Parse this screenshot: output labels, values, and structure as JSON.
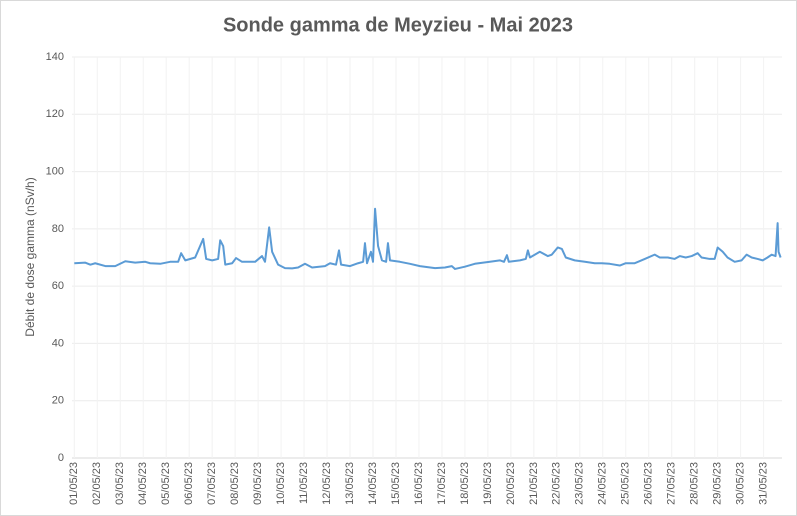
{
  "chart_data": {
    "type": "line",
    "title": "Sonde gamma de Meyzieu - Mai 2023",
    "y_label": "Débit de dose gamma (nSv/h)",
    "grid": true,
    "xlim": [
      0.9,
      31.8
    ],
    "xticks": [
      {
        "value": 1,
        "label": "01/05/23"
      },
      {
        "value": 2,
        "label": "02/05/23"
      },
      {
        "value": 3,
        "label": "03/05/23"
      },
      {
        "value": 4,
        "label": "04/05/23"
      },
      {
        "value": 5,
        "label": "05/05/23"
      },
      {
        "value": 6,
        "label": "06/05/23"
      },
      {
        "value": 7,
        "label": "07/05/23"
      },
      {
        "value": 8,
        "label": "08/05/23"
      },
      {
        "value": 9,
        "label": "09/05/23"
      },
      {
        "value": 10,
        "label": "10/05/23"
      },
      {
        "value": 11,
        "label": "11/05/23"
      },
      {
        "value": 12,
        "label": "12/05/23"
      },
      {
        "value": 13,
        "label": "13/05/23"
      },
      {
        "value": 14,
        "label": "14/05/23"
      },
      {
        "value": 15,
        "label": "15/05/23"
      },
      {
        "value": 16,
        "label": "16/05/23"
      },
      {
        "value": 17,
        "label": "17/05/23"
      },
      {
        "value": 18,
        "label": "18/05/23"
      },
      {
        "value": 19,
        "label": "19/05/23"
      },
      {
        "value": 20,
        "label": "20/05/23"
      },
      {
        "value": 21,
        "label": "21/05/23"
      },
      {
        "value": 22,
        "label": "22/05/23"
      },
      {
        "value": 23,
        "label": "23/05/23"
      },
      {
        "value": 24,
        "label": "24/05/23"
      },
      {
        "value": 25,
        "label": "25/05/23"
      },
      {
        "value": 26,
        "label": "26/05/23"
      },
      {
        "value": 27,
        "label": "27/05/23"
      },
      {
        "value": 28,
        "label": "28/05/23"
      },
      {
        "value": 29,
        "label": "29/05/23"
      },
      {
        "value": 30,
        "label": "30/05/23"
      },
      {
        "value": 31,
        "label": "31/05/23"
      }
    ],
    "ylim": [
      0,
      140
    ],
    "yticks": [
      0,
      20,
      40,
      60,
      80,
      100,
      120,
      140
    ],
    "color": "#5b9bd5",
    "x": [
      1.0,
      1.48,
      1.7,
      1.91,
      2.35,
      2.78,
      3.22,
      3.65,
      4.09,
      4.3,
      4.74,
      5.17,
      5.52,
      5.65,
      5.83,
      6.26,
      6.61,
      6.74,
      7.0,
      7.26,
      7.35,
      7.48,
      7.57,
      7.87,
      8.04,
      8.3,
      8.87,
      9.17,
      9.3,
      9.48,
      9.61,
      9.87,
      10.17,
      10.48,
      10.74,
      11.04,
      11.35,
      11.91,
      12.13,
      12.39,
      12.52,
      12.61,
      13.0,
      13.35,
      13.57,
      13.65,
      13.74,
      13.91,
      14.0,
      14.09,
      14.22,
      14.39,
      14.57,
      14.65,
      14.74,
      15.17,
      15.61,
      16.04,
      16.7,
      17.13,
      17.43,
      17.57,
      18.0,
      18.43,
      19.09,
      19.52,
      19.7,
      19.83,
      19.91,
      20.39,
      20.65,
      20.74,
      20.83,
      21.26,
      21.61,
      21.78,
      22.04,
      22.22,
      22.39,
      22.78,
      23.22,
      23.65,
      23.96,
      24.3,
      24.74,
      25.0,
      25.39,
      25.83,
      26.26,
      26.48,
      26.83,
      27.13,
      27.35,
      27.61,
      27.87,
      28.13,
      28.3,
      28.65,
      28.87,
      29.0,
      29.22,
      29.43,
      29.74,
      30.04,
      30.26,
      30.48,
      30.74,
      30.96,
      31.17,
      31.35,
      31.52,
      31.61,
      31.65,
      31.74
    ],
    "values": [
      68,
      68.2,
      67.5,
      68,
      67,
      67,
      68.7,
      68.2,
      68.5,
      68,
      67.8,
      68.5,
      68.5,
      71.5,
      69,
      70,
      76.5,
      69.5,
      69,
      69.5,
      76,
      74,
      67.5,
      68,
      69.8,
      68.5,
      68.5,
      70.5,
      68.5,
      80.5,
      72,
      67.5,
      66.3,
      66.2,
      66.5,
      67.8,
      66.5,
      67,
      68,
      67.5,
      72.5,
      67.5,
      67,
      68,
      68.5,
      75,
      68,
      72,
      68.5,
      87,
      74,
      69,
      68.5,
      75,
      69,
      68.5,
      67.8,
      67,
      66.3,
      66.5,
      67,
      66,
      66.8,
      67.8,
      68.5,
      69,
      68.5,
      70.8,
      68.5,
      69,
      69.5,
      72.5,
      70,
      72,
      70.5,
      71,
      73.5,
      73,
      70,
      69,
      68.5,
      68,
      68,
      67.8,
      67.2,
      68,
      68,
      69.5,
      71,
      70,
      70,
      69.5,
      70.5,
      70,
      70.5,
      71.5,
      70,
      69.5,
      69.5,
      73.5,
      72,
      70,
      68.5,
      69,
      71,
      70,
      69.5,
      69,
      70,
      71,
      70.5,
      82,
      72,
      70
    ]
  }
}
